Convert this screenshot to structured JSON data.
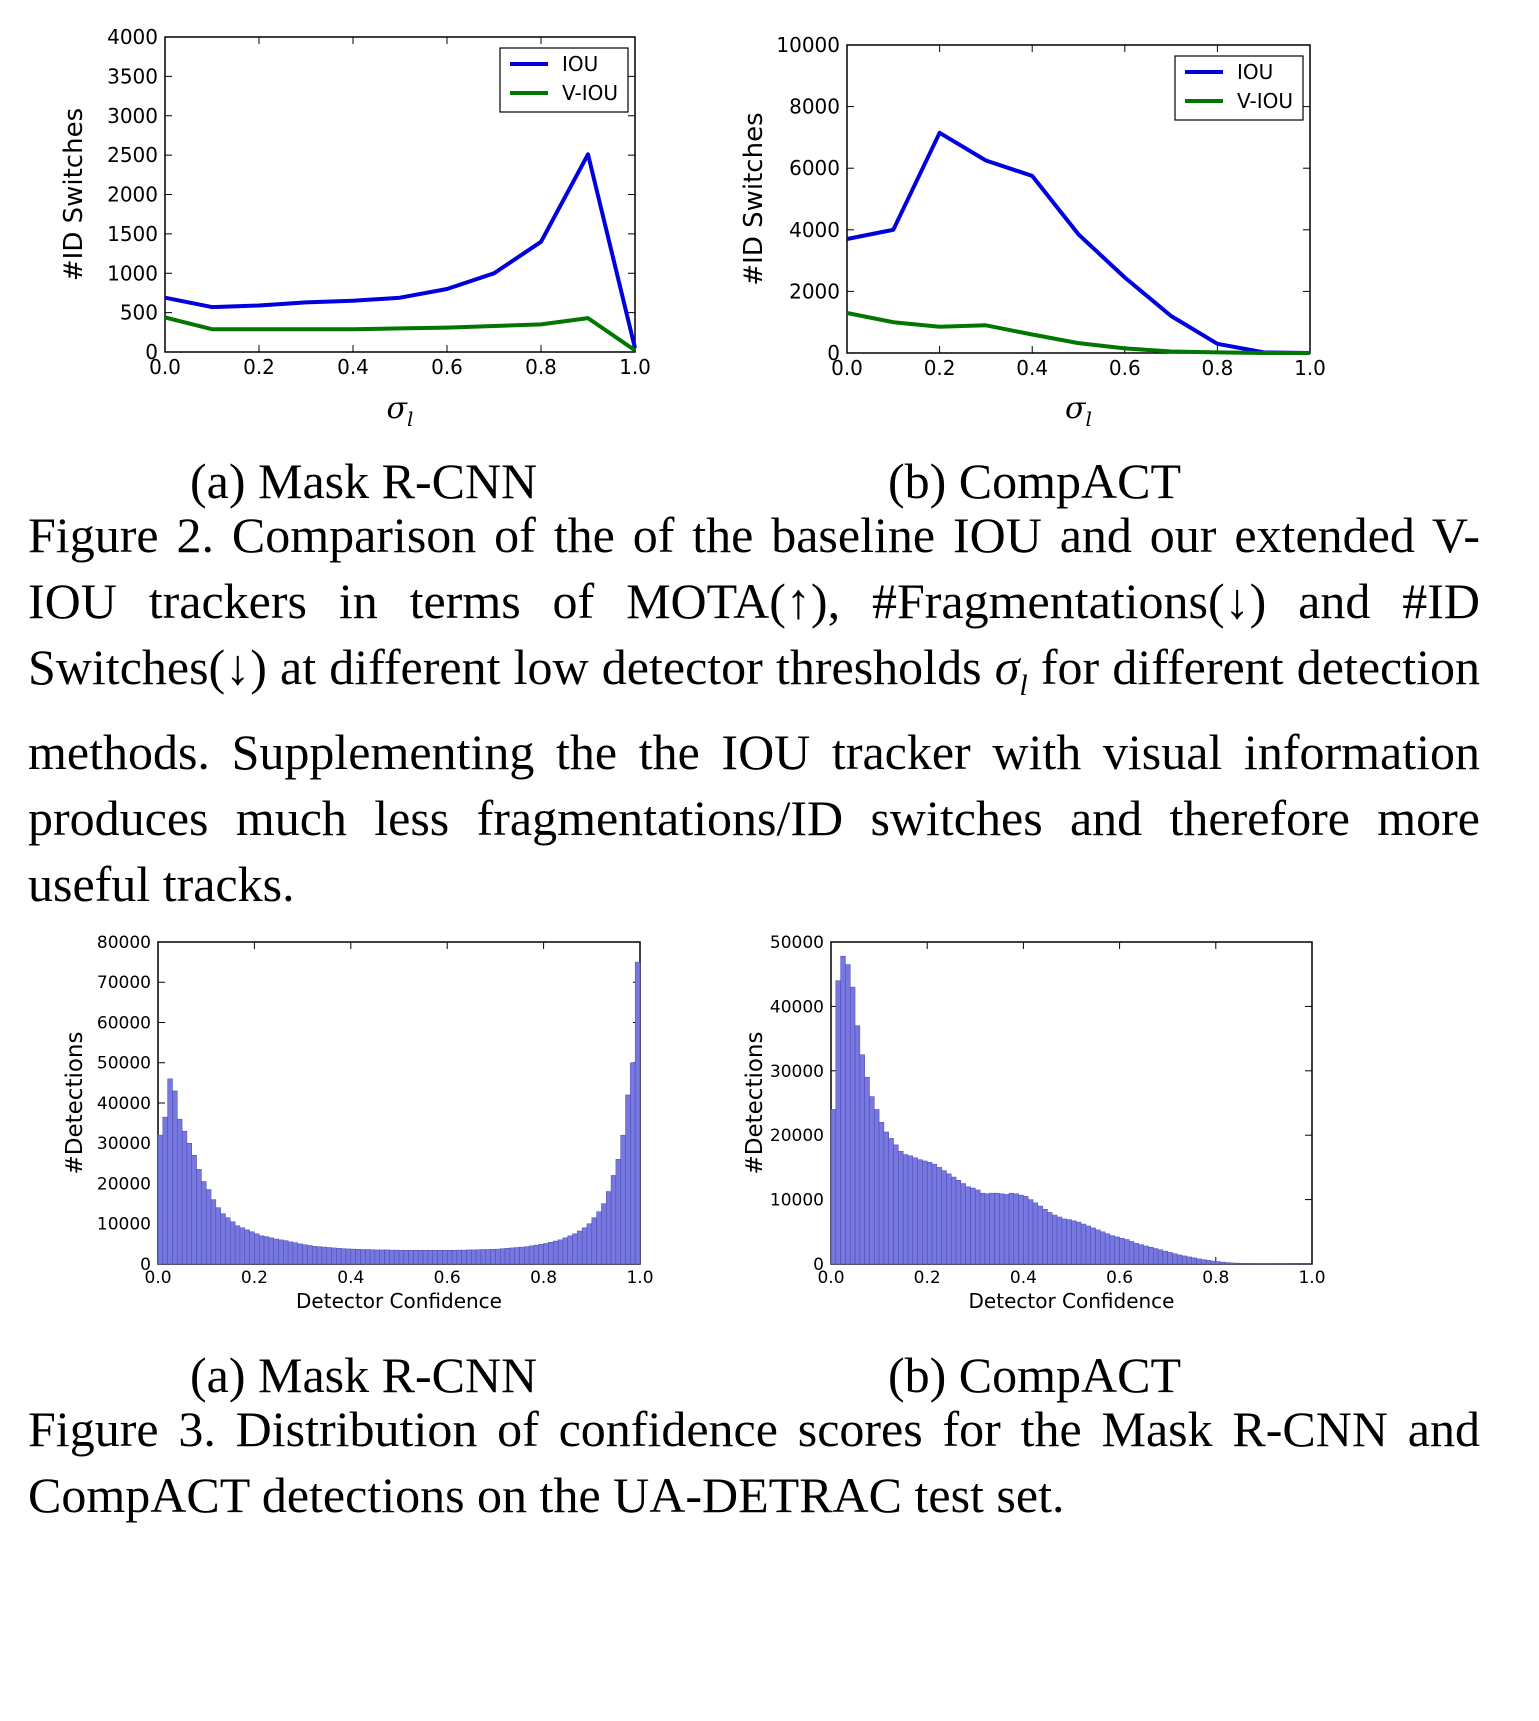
{
  "figure2": {
    "caption": "Figure 2. Comparison of the of the baseline IOU and our extended V-IOU trackers in terms of MOTA(↑), #Fragmentations(↓) and #ID Switches(↓) at different low detector thresholds σl for different detection methods. Supplementing the the IOU tracker with visual information produces much less fragmentations/ID switches and therefore more useful tracks.",
    "caption_pre": "Figure 2. Comparison of the of the baseline IOU and our extended V-IOU trackers in terms of MOTA(↑), #Fragmentations(↓) and #ID Switches(↓) at different low detector thresholds ",
    "caption_sym": "σ",
    "caption_sub": "l",
    "caption_post": " for different detection methods. Supplementing the the IOU tracker with visual information produces much less fragmentations/ID switches and therefore more useful tracks.",
    "subcaption_a": "(a) Mask R-CNN",
    "subcaption_b": "(b) CompACT"
  },
  "figure3": {
    "caption": "Figure 3. Distribution of confidence scores for the Mask R-CNN and CompACT detections on the UA-DETRAC test set.",
    "subcaption_a": "(a) Mask R-CNN",
    "subcaption_b": "(b) CompACT"
  },
  "chart_data": [
    {
      "type": "line",
      "ylabel": "#ID Switches",
      "xlabel_symbol": "σ",
      "xlabel_sub": "l",
      "xlim": [
        0.0,
        1.0
      ],
      "ylim": [
        0,
        4000
      ],
      "xticks": [
        "0.0",
        "0.2",
        "0.4",
        "0.6",
        "0.8",
        "1.0"
      ],
      "yticks": [
        "0",
        "500",
        "1000",
        "1500",
        "2000",
        "2500",
        "3000",
        "3500",
        "4000"
      ],
      "x": [
        0.0,
        0.1,
        0.2,
        0.3,
        0.4,
        0.5,
        0.6,
        0.7,
        0.8,
        0.9,
        1.0
      ],
      "series": [
        {
          "name": "IOU",
          "color": "#0000dd",
          "values": [
            690,
            570,
            590,
            630,
            650,
            690,
            800,
            1000,
            1400,
            2510,
            50
          ]
        },
        {
          "name": "V-IOU",
          "color": "#007700",
          "values": [
            440,
            290,
            290,
            290,
            290,
            300,
            310,
            330,
            350,
            430,
            20
          ]
        }
      ],
      "legend": "top-right",
      "grid": false
    },
    {
      "type": "line",
      "ylabel": "#ID Switches",
      "xlabel_symbol": "σ",
      "xlabel_sub": "l",
      "xlim": [
        0.0,
        1.0
      ],
      "ylim": [
        0,
        10000
      ],
      "xticks": [
        "0.0",
        "0.2",
        "0.4",
        "0.6",
        "0.8",
        "1.0"
      ],
      "yticks": [
        "0",
        "2000",
        "4000",
        "6000",
        "8000",
        "10000"
      ],
      "x": [
        0.0,
        0.1,
        0.2,
        0.3,
        0.4,
        0.5,
        0.6,
        0.7,
        0.8,
        0.9,
        1.0
      ],
      "series": [
        {
          "name": "IOU",
          "color": "#0000dd",
          "values": [
            3700,
            4000,
            7150,
            6250,
            5750,
            3850,
            2450,
            1200,
            300,
            20,
            0
          ]
        },
        {
          "name": "V-IOU",
          "color": "#007700",
          "values": [
            1300,
            1000,
            850,
            900,
            600,
            320,
            150,
            50,
            20,
            0,
            0
          ]
        }
      ],
      "legend": "top-right",
      "grid": false
    },
    {
      "type": "bar",
      "xlabel": "Detector Confidence",
      "ylabel": "#Detections",
      "xlim": [
        0.0,
        1.0
      ],
      "ylim": [
        0,
        80000
      ],
      "xticks": [
        "0.0",
        "0.2",
        "0.4",
        "0.6",
        "0.8",
        "1.0"
      ],
      "yticks": [
        "0",
        "10000",
        "20000",
        "30000",
        "40000",
        "50000",
        "60000",
        "70000",
        "80000"
      ],
      "bin_width": 0.01,
      "bar_color": "#7777e0",
      "values": [
        32000,
        36500,
        46000,
        43000,
        36000,
        33000,
        30000,
        27000,
        23500,
        20500,
        18500,
        16000,
        14000,
        12500,
        11500,
        10500,
        9500,
        9000,
        8500,
        8000,
        7500,
        7000,
        6800,
        6500,
        6200,
        6000,
        5800,
        5500,
        5300,
        5000,
        4800,
        4600,
        4400,
        4300,
        4200,
        4100,
        4000,
        3900,
        3800,
        3750,
        3700,
        3650,
        3600,
        3600,
        3550,
        3500,
        3500,
        3500,
        3450,
        3450,
        3400,
        3400,
        3400,
        3400,
        3400,
        3400,
        3400,
        3400,
        3400,
        3400,
        3400,
        3400,
        3450,
        3450,
        3500,
        3500,
        3550,
        3600,
        3600,
        3650,
        3700,
        3800,
        3900,
        4000,
        4100,
        4200,
        4300,
        4500,
        4700,
        4900,
        5100,
        5400,
        5700,
        6000,
        6500,
        7000,
        7500,
        8200,
        9000,
        10000,
        11500,
        13000,
        15000,
        18000,
        22000,
        26000,
        32000,
        42000,
        50000,
        75000
      ]
    },
    {
      "type": "bar",
      "xlabel": "Detector Confidence",
      "ylabel": "#Detections",
      "xlim": [
        0.0,
        1.0
      ],
      "ylim": [
        0,
        50000
      ],
      "xticks": [
        "0.0",
        "0.2",
        "0.4",
        "0.6",
        "0.8",
        "1.0"
      ],
      "yticks": [
        "0",
        "10000",
        "20000",
        "30000",
        "40000",
        "50000"
      ],
      "bin_width": 0.01,
      "bar_color": "#7777e0",
      "values": [
        24000,
        44000,
        47800,
        46500,
        43000,
        37000,
        32500,
        29000,
        26000,
        24000,
        22000,
        20500,
        19500,
        18500,
        17500,
        17000,
        16800,
        16500,
        16200,
        16000,
        15800,
        15500,
        15000,
        14500,
        14000,
        13500,
        13000,
        12500,
        12000,
        11800,
        11500,
        11000,
        10900,
        11000,
        11000,
        10900,
        10800,
        11000,
        10900,
        10700,
        10500,
        10000,
        9500,
        9000,
        8500,
        8000,
        7600,
        7300,
        7000,
        6900,
        6700,
        6500,
        6200,
        5900,
        5600,
        5300,
        5000,
        4700,
        4400,
        4200,
        4000,
        3800,
        3500,
        3200,
        3000,
        2800,
        2600,
        2400,
        2200,
        2000,
        1800,
        1600,
        1400,
        1250,
        1100,
        950,
        800,
        680,
        560,
        460,
        370,
        290,
        220,
        170,
        130,
        100,
        80,
        60,
        50,
        40,
        30,
        25,
        20,
        15,
        10,
        8,
        6,
        5,
        4,
        3
      ]
    }
  ]
}
